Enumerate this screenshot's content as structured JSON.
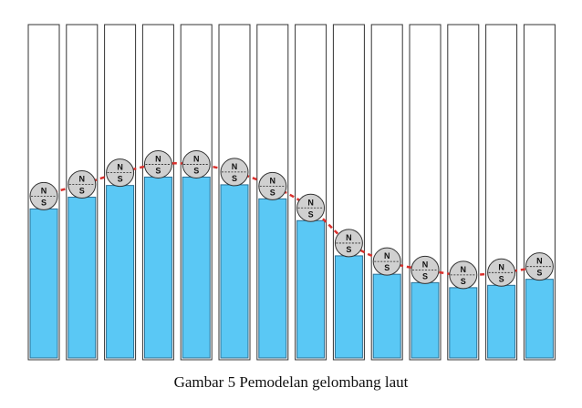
{
  "caption": "Gambar 5 Pemodelan gelombang laut",
  "magnet": {
    "north_label": "N",
    "south_label": "S"
  },
  "colors": {
    "tube_border": "#333333",
    "water": "#5ac8f5",
    "water_border": "#2a6f94",
    "magnet_fill": "#d0d0d0",
    "wave_line": "#d9302c"
  },
  "tubes": [
    {
      "water_level": 0.45
    },
    {
      "water_level": 0.485
    },
    {
      "water_level": 0.52
    },
    {
      "water_level": 0.545
    },
    {
      "water_level": 0.545
    },
    {
      "water_level": 0.522
    },
    {
      "water_level": 0.48
    },
    {
      "water_level": 0.415
    },
    {
      "water_level": 0.31
    },
    {
      "water_level": 0.255
    },
    {
      "water_level": 0.23
    },
    {
      "water_level": 0.215
    },
    {
      "water_level": 0.222
    },
    {
      "water_level": 0.24
    }
  ]
}
